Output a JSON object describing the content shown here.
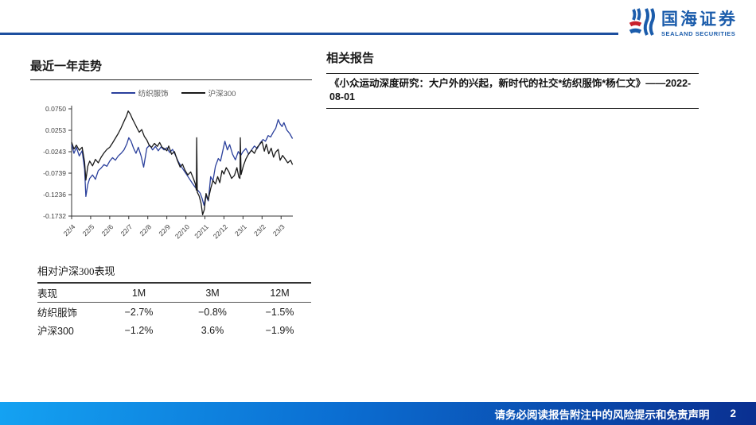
{
  "header": {
    "brand_cn": "国海证券",
    "brand_en": "SEALAND SECURITIES"
  },
  "left_panel": {
    "title": "最近一年走势"
  },
  "chart_data": {
    "type": "line",
    "title": "最近一年走势",
    "grid": false,
    "legend_position": "top",
    "x_labels": [
      "22/4",
      "22/5",
      "22/6",
      "22/7",
      "22/8",
      "22/9",
      "22/10",
      "22/11",
      "22/12",
      "23/1",
      "23/2",
      "23/3"
    ],
    "y_ticks": [
      "0.0750",
      "0.0253",
      "-0.0243",
      "-0.0739",
      "-0.1236",
      "-0.1732"
    ],
    "ylim": [
      -0.1732,
      0.075
    ],
    "series": [
      {
        "name": "纺织服饰",
        "color": "#2b409c",
        "width": 1.3,
        "points": [
          [
            0,
            -0.008
          ],
          [
            0.12,
            -0.028
          ],
          [
            0.25,
            -0.014
          ],
          [
            0.4,
            -0.034
          ],
          [
            0.55,
            -0.022
          ],
          [
            0.68,
            -0.065
          ],
          [
            0.75,
            -0.128
          ],
          [
            0.85,
            -0.1
          ],
          [
            0.95,
            -0.086
          ],
          [
            1.1,
            -0.078
          ],
          [
            1.25,
            -0.088
          ],
          [
            1.4,
            -0.068
          ],
          [
            1.55,
            -0.062
          ],
          [
            1.7,
            -0.054
          ],
          [
            1.85,
            -0.058
          ],
          [
            2,
            -0.046
          ],
          [
            2.15,
            -0.038
          ],
          [
            2.3,
            -0.044
          ],
          [
            2.45,
            -0.034
          ],
          [
            2.6,
            -0.028
          ],
          [
            2.75,
            -0.02
          ],
          [
            2.9,
            -0.006
          ],
          [
            3,
            0.008
          ],
          [
            3.12,
            0
          ],
          [
            3.25,
            -0.016
          ],
          [
            3.38,
            -0.028
          ],
          [
            3.5,
            -0.014
          ],
          [
            3.65,
            -0.034
          ],
          [
            3.78,
            -0.06
          ],
          [
            3.95,
            -0.016
          ],
          [
            4.1,
            -0.009
          ],
          [
            4.25,
            -0.02
          ],
          [
            4.4,
            -0.012
          ],
          [
            4.55,
            -0.022
          ],
          [
            4.7,
            -0.013
          ],
          [
            4.85,
            -0.02
          ],
          [
            5,
            -0.015
          ],
          [
            5.15,
            -0.026
          ],
          [
            5.3,
            -0.019
          ],
          [
            5.45,
            -0.032
          ],
          [
            5.6,
            -0.047
          ],
          [
            5.75,
            -0.058
          ],
          [
            5.9,
            -0.068
          ],
          [
            6.05,
            -0.078
          ],
          [
            6.2,
            -0.088
          ],
          [
            6.35,
            -0.098
          ],
          [
            6.5,
            -0.107
          ],
          [
            6.62,
            -0.113
          ],
          [
            6.75,
            -0.12
          ],
          [
            6.85,
            -0.132
          ],
          [
            6.95,
            -0.148
          ],
          [
            7.05,
            -0.126
          ],
          [
            7.18,
            -0.138
          ],
          [
            7.3,
            -0.082
          ],
          [
            7.42,
            -0.092
          ],
          [
            7.55,
            -0.058
          ],
          [
            7.7,
            -0.04
          ],
          [
            7.82,
            -0.046
          ],
          [
            7.95,
            -0.02
          ],
          [
            8.05,
            0
          ],
          [
            8.18,
            -0.02
          ],
          [
            8.3,
            -0.008
          ],
          [
            8.45,
            -0.03
          ],
          [
            8.6,
            -0.043
          ],
          [
            8.75,
            -0.024
          ],
          [
            8.88,
            -0.033
          ],
          [
            9,
            -0.024
          ],
          [
            9.15,
            -0.017
          ],
          [
            9.3,
            -0.03
          ],
          [
            9.45,
            -0.02
          ],
          [
            9.6,
            -0.011
          ],
          [
            9.75,
            -0.017
          ],
          [
            9.9,
            -0.004
          ],
          [
            10.05,
            0.004
          ],
          [
            10.18,
            0
          ],
          [
            10.32,
            0.013
          ],
          [
            10.45,
            0.01
          ],
          [
            10.6,
            0.022
          ],
          [
            10.72,
            0.03
          ],
          [
            10.85,
            0.05
          ],
          [
            10.95,
            0.04
          ],
          [
            11.05,
            0.034
          ],
          [
            11.15,
            0.043
          ],
          [
            11.3,
            0.026
          ],
          [
            11.45,
            0.018
          ],
          [
            11.6,
            0.006
          ]
        ]
      },
      {
        "name": "沪深300",
        "color": "#1a1a1a",
        "width": 1.3,
        "points": [
          [
            0,
            -0.002
          ],
          [
            0.12,
            -0.018
          ],
          [
            0.25,
            -0.009
          ],
          [
            0.4,
            -0.021
          ],
          [
            0.55,
            -0.014
          ],
          [
            0.68,
            -0.048
          ],
          [
            0.75,
            -0.09
          ],
          [
            0.85,
            -0.058
          ],
          [
            0.95,
            -0.046
          ],
          [
            1.1,
            -0.057
          ],
          [
            1.25,
            -0.042
          ],
          [
            1.4,
            -0.05
          ],
          [
            1.55,
            -0.037
          ],
          [
            1.7,
            -0.027
          ],
          [
            1.85,
            -0.019
          ],
          [
            2,
            -0.014
          ],
          [
            2.15,
            -0.004
          ],
          [
            2.3,
            0.007
          ],
          [
            2.45,
            0.018
          ],
          [
            2.6,
            0.031
          ],
          [
            2.75,
            0.046
          ],
          [
            2.88,
            0.058
          ],
          [
            2.97,
            0.07
          ],
          [
            3.08,
            0.063
          ],
          [
            3.2,
            0.051
          ],
          [
            3.32,
            0.041
          ],
          [
            3.45,
            0.029
          ],
          [
            3.55,
            0.021
          ],
          [
            3.68,
            0.027
          ],
          [
            3.82,
            0.011
          ],
          [
            3.95,
            0.003
          ],
          [
            4.08,
            -0.01
          ],
          [
            4.2,
            -0.014
          ],
          [
            4.35,
            -0.005
          ],
          [
            4.5,
            -0.012
          ],
          [
            4.62,
            -0.003
          ],
          [
            4.75,
            -0.014
          ],
          [
            4.9,
            -0.018
          ],
          [
            5,
            -0.022
          ],
          [
            5.1,
            -0.011
          ],
          [
            5.25,
            -0.03
          ],
          [
            5.4,
            -0.024
          ],
          [
            5.55,
            -0.044
          ],
          [
            5.7,
            -0.06
          ],
          [
            5.82,
            -0.053
          ],
          [
            5.95,
            -0.067
          ],
          [
            6.1,
            -0.078
          ],
          [
            6.25,
            -0.071
          ],
          [
            6.4,
            -0.087
          ],
          [
            6.5,
            -0.099
          ],
          [
            6.55,
            -0.113
          ],
          [
            6.57,
            0.008
          ],
          [
            6.6,
            -0.118
          ],
          [
            6.7,
            -0.127
          ],
          [
            6.8,
            -0.144
          ],
          [
            6.88,
            -0.17
          ],
          [
            6.97,
            -0.158
          ],
          [
            7.06,
            -0.121
          ],
          [
            7.17,
            -0.136
          ],
          [
            7.3,
            -0.11
          ],
          [
            7.42,
            -0.091
          ],
          [
            7.55,
            -0.099
          ],
          [
            7.67,
            -0.082
          ],
          [
            7.78,
            -0.096
          ],
          [
            7.9,
            -0.068
          ],
          [
            8,
            -0.076
          ],
          [
            8.12,
            -0.061
          ],
          [
            8.25,
            -0.07
          ],
          [
            8.4,
            -0.086
          ],
          [
            8.55,
            -0.079
          ],
          [
            8.68,
            -0.061
          ],
          [
            8.78,
            -0.083
          ],
          [
            8.84,
            -0.086
          ],
          [
            8.86,
            0.008
          ],
          [
            8.9,
            -0.077
          ],
          [
            9.02,
            -0.057
          ],
          [
            9.15,
            -0.041
          ],
          [
            9.3,
            -0.029
          ],
          [
            9.45,
            -0.021
          ],
          [
            9.6,
            -0.028
          ],
          [
            9.75,
            -0.014
          ],
          [
            9.9,
            -0.006
          ],
          [
            10,
            -0.001
          ],
          [
            10.12,
            -0.023
          ],
          [
            10.22,
            -0.007
          ],
          [
            10.35,
            -0.029
          ],
          [
            10.48,
            -0.016
          ],
          [
            10.6,
            -0.037
          ],
          [
            10.72,
            -0.025
          ],
          [
            10.85,
            -0.019
          ],
          [
            10.95,
            -0.044
          ],
          [
            11.08,
            -0.033
          ],
          [
            11.2,
            -0.04
          ],
          [
            11.35,
            -0.05
          ],
          [
            11.5,
            -0.044
          ],
          [
            11.6,
            -0.054
          ]
        ]
      }
    ]
  },
  "relative_table": {
    "title": "相对沪深300表现",
    "headers": [
      "表现",
      "1M",
      "3M",
      "12M"
    ],
    "rows": [
      {
        "label": "纺织服饰",
        "values": [
          "−2.7%",
          "−0.8%",
          "−1.5%"
        ]
      },
      {
        "label": "沪深300",
        "values": [
          "−1.2%",
          "3.6%",
          "−1.9%"
        ]
      }
    ]
  },
  "right_panel": {
    "title": "相关报告",
    "reports": [
      {
        "text": "《小众运动深度研究：大户外的兴起，新时代的社交*纺织服饰*杨仁文》——2022-08-01"
      }
    ]
  },
  "footer": {
    "disclaimer": "请务必阅读报告附注中的风险提示和免责声明",
    "page_number": "2"
  },
  "colors": {
    "brand_blue": "#1b5cab",
    "brand_red": "#c8202b",
    "header_rule": "#1d4f9f",
    "footer_gradient_left": "#14a2f2",
    "footer_gradient_right": "#0a2f90",
    "series_textile": "#2b409c",
    "series_csi300": "#1a1a1a"
  }
}
